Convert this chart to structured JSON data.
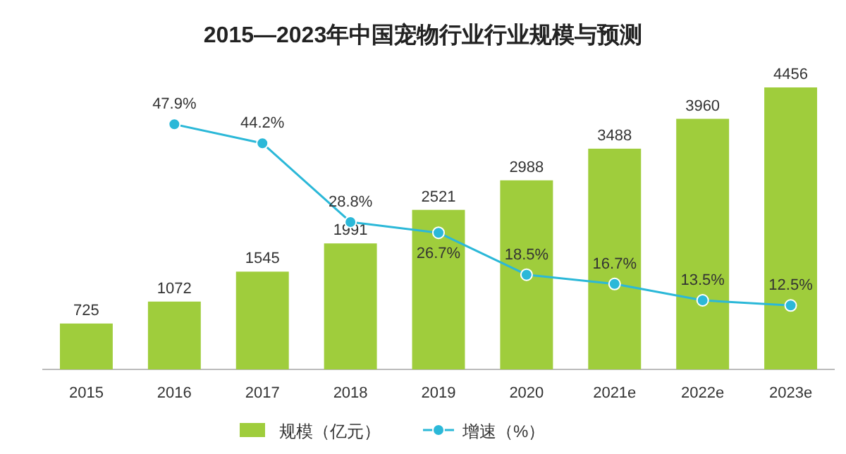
{
  "chart_data": {
    "type": "bar",
    "title": "2015—2023年中国宠物行业行业规模与预测",
    "categories": [
      "2015",
      "2016",
      "2017",
      "2018",
      "2019",
      "2020",
      "2021e",
      "2022e",
      "2023e"
    ],
    "series": [
      {
        "name": "规模（亿元）",
        "color": "#9fcd3c",
        "values": [
          725,
          1072,
          1545,
          1991,
          2521,
          2988,
          3488,
          3960,
          4456
        ]
      },
      {
        "name": "增速（%）",
        "type": "line",
        "axis": "y2",
        "color": "#2bb8d8",
        "marker": "circle",
        "values": [
          null,
          47.9,
          44.2,
          28.8,
          26.7,
          18.5,
          16.7,
          13.5,
          12.5
        ],
        "value_labels": [
          null,
          "47.9%",
          "44.2%",
          "28.8%",
          "26.7%",
          "18.5%",
          "16.7%",
          "13.5%",
          "12.5%"
        ]
      }
    ],
    "data_labels": true,
    "legend": "bottom"
  }
}
